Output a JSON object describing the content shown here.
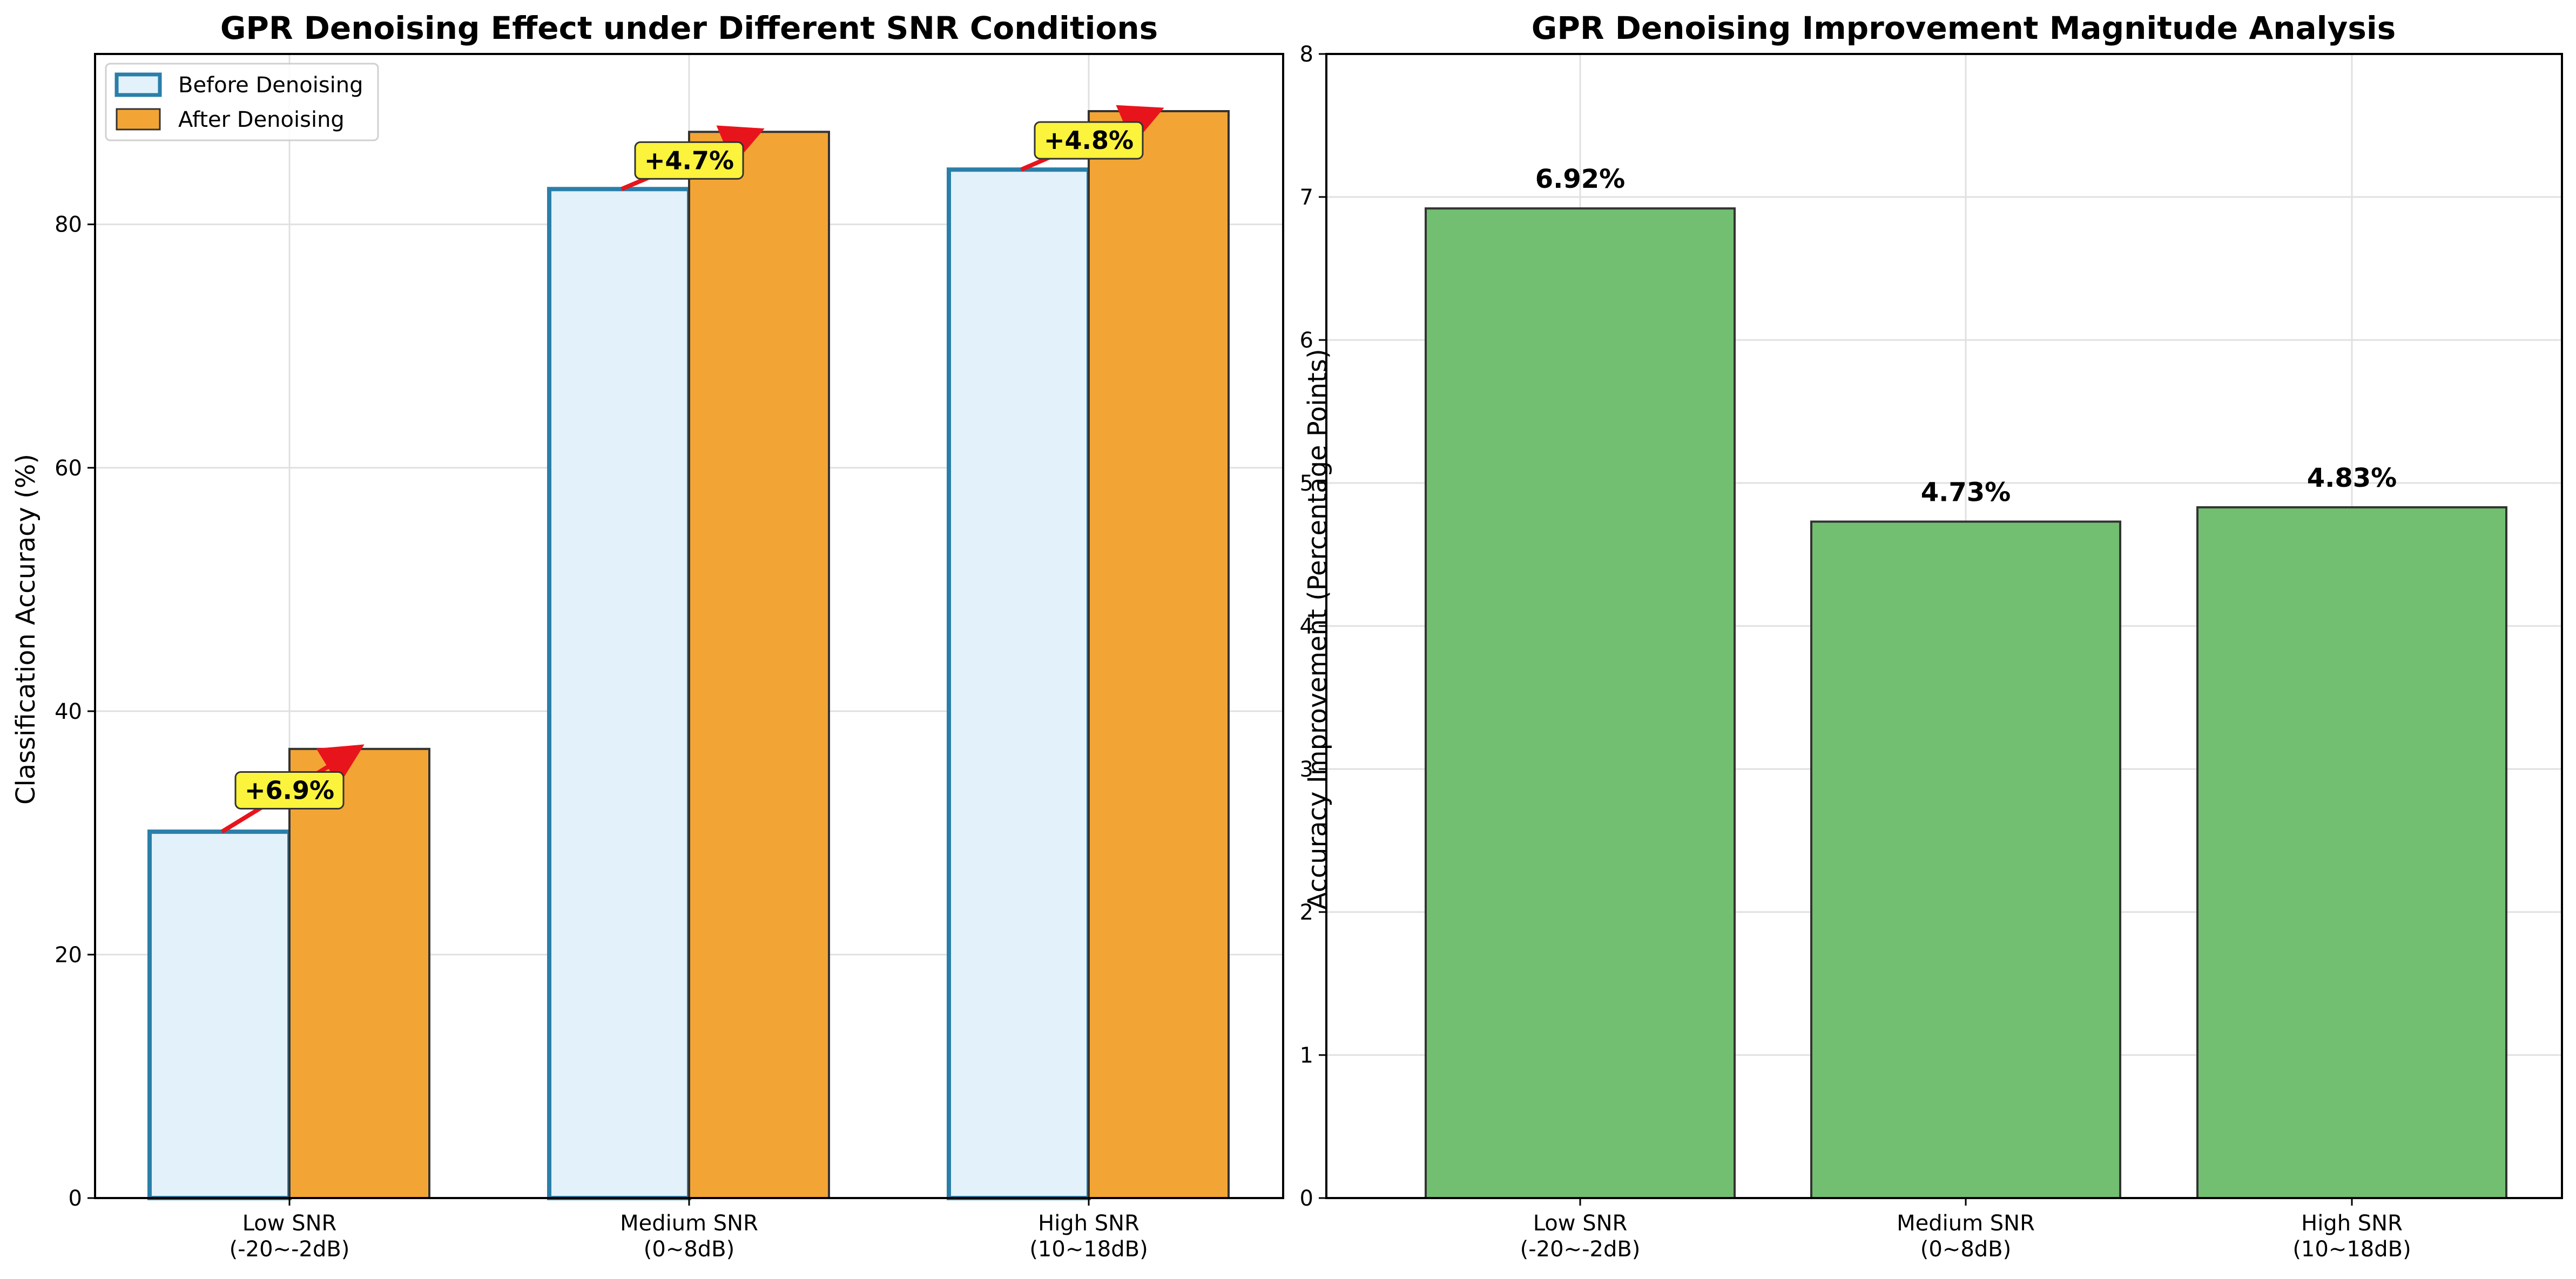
{
  "chart_data": [
    {
      "type": "bar",
      "title": "GPR Denoising Effect under Different SNR Conditions",
      "xlabel": "",
      "ylabel": "Classification Accuracy (%)",
      "categories": [
        [
          "Low SNR",
          "(-20~-2dB)"
        ],
        [
          "Medium SNR",
          "(0~8dB)"
        ],
        [
          "High SNR",
          "(10~18dB)"
        ]
      ],
      "series": [
        {
          "name": "Before Denoising",
          "values": [
            30.1,
            82.9,
            84.5
          ],
          "fill": "#e3f1fb",
          "stroke": "#2a7fa9"
        },
        {
          "name": "After Denoising",
          "values": [
            36.9,
            87.6,
            89.3
          ],
          "fill": "#f2a535",
          "stroke": "#333333"
        }
      ],
      "annotations": [
        "+6.9%",
        "+4.7%",
        "+4.8%"
      ],
      "ylim": [
        0,
        94
      ],
      "yticks": [
        0,
        20,
        40,
        60,
        80
      ],
      "grid": true,
      "legend": "top-left"
    },
    {
      "type": "bar",
      "title": "GPR Denoising Improvement Magnitude Analysis",
      "xlabel": "",
      "ylabel": "Accuracy Improvement (Percentage Points)",
      "categories": [
        [
          "Low SNR",
          "(-20~-2dB)"
        ],
        [
          "Medium SNR",
          "(0~8dB)"
        ],
        [
          "High SNR",
          "(10~18dB)"
        ]
      ],
      "values": [
        6.92,
        4.73,
        4.83
      ],
      "value_labels": [
        "6.92%",
        "4.73%",
        "4.83%"
      ],
      "fill": "#72bf72",
      "stroke": "#333333",
      "ylim": [
        0,
        8
      ],
      "yticks": [
        0,
        1,
        2,
        3,
        4,
        5,
        6,
        7,
        8
      ],
      "grid": true
    }
  ]
}
